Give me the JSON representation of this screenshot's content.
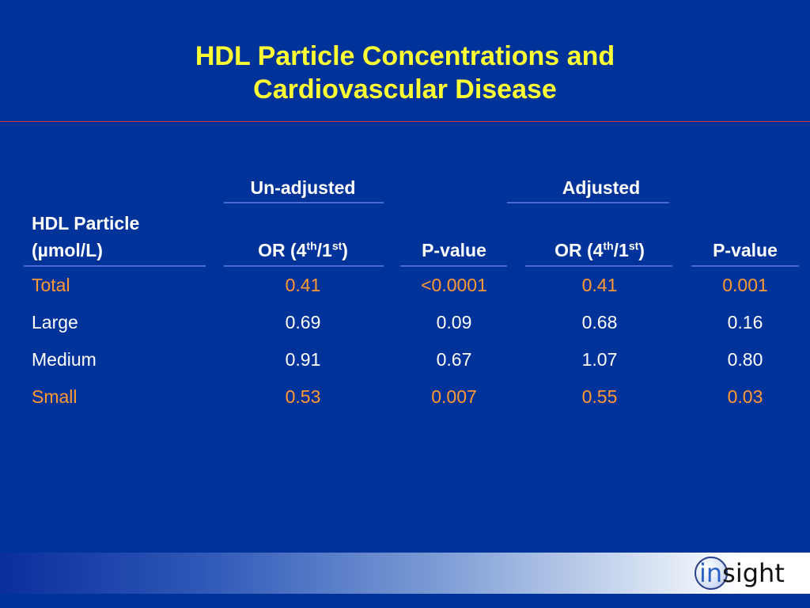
{
  "title": {
    "line1": "HDL Particle Concentrations and",
    "line2": "Cardiovascular Disease"
  },
  "table": {
    "group_headers": [
      "Un-adjusted",
      "Adjusted"
    ],
    "row_header_line1": "HDL Particle",
    "row_header_line2": "(µmol/L)",
    "col_or_prefix": "OR (4",
    "col_or_sup1": "th",
    "col_or_mid": "/1",
    "col_or_sup2": "st",
    "col_or_suffix": ")",
    "col_pvalue": "P-value",
    "rows": [
      {
        "label": "Total",
        "cells": [
          "0.41",
          "<0.0001",
          "0.41",
          "0.001"
        ],
        "highlight": true
      },
      {
        "label": "Large",
        "cells": [
          "0.69",
          "0.09",
          "0.68",
          "0.16"
        ],
        "highlight": false
      },
      {
        "label": "Medium",
        "cells": [
          "0.91",
          "0.67",
          "1.07",
          "0.80"
        ],
        "highlight": false
      },
      {
        "label": "Small",
        "cells": [
          "0.53",
          "0.007",
          "0.55",
          "0.03"
        ],
        "highlight": true
      }
    ]
  },
  "logo": {
    "part1": "in",
    "part2": "sight"
  },
  "colors": {
    "background": "#003399",
    "title": "#ffff33",
    "highlight": "#ff9933"
  }
}
